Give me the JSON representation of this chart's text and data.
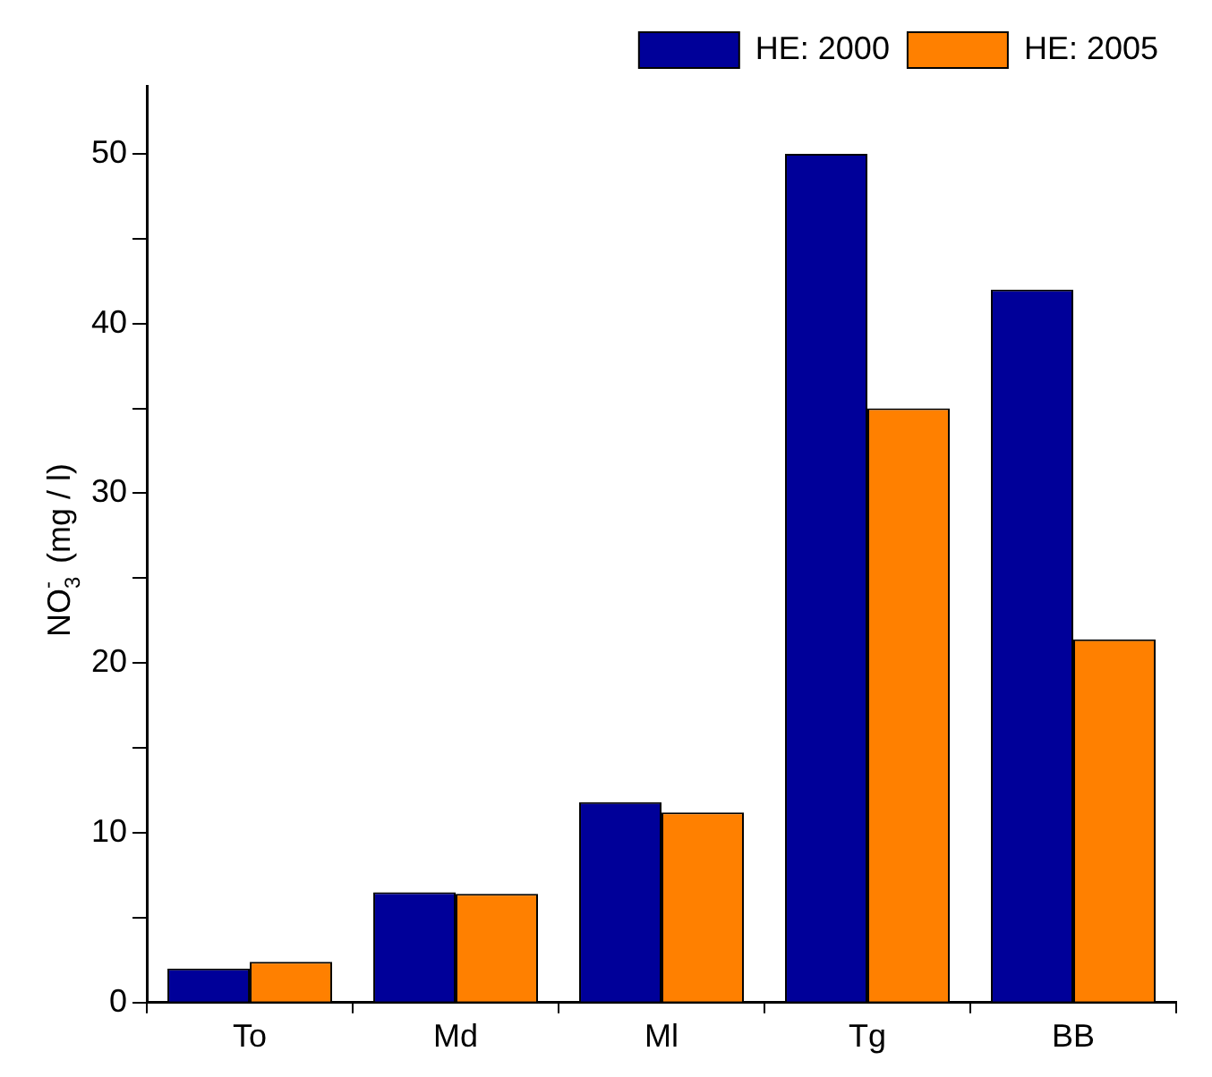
{
  "chart_data": {
    "type": "bar",
    "ylabel": "NO$_{3}$$^{-}$  (mg / l)",
    "categories": [
      "To",
      "Md",
      "Ml",
      "Tg",
      "BB"
    ],
    "series": [
      {
        "name": "HE: 2000",
        "color": "#000099",
        "values": [
          2.0,
          6.5,
          11.8,
          50,
          42
        ]
      },
      {
        "name": "HE: 2005",
        "color": "#ff8000",
        "values": [
          2.4,
          6.4,
          11.2,
          35,
          21.4
        ]
      }
    ],
    "ylim": [
      0,
      54
    ],
    "yticks": [
      0,
      {
        "value": 5,
        "label": null
      },
      10,
      {
        "value": 15,
        "label": null
      },
      20,
      {
        "value": 25,
        "label": null
      },
      30,
      {
        "value": 35,
        "label": null
      },
      40,
      {
        "value": 45,
        "label": null
      },
      50
    ],
    "legend": "top right",
    "grid": false
  }
}
